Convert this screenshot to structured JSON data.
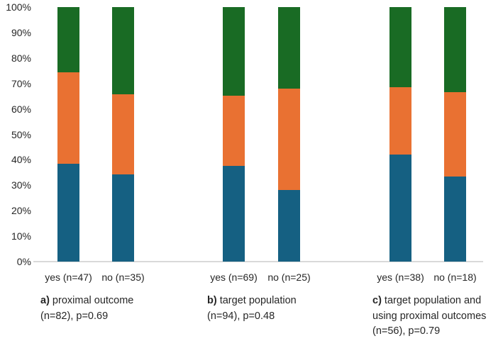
{
  "chart_data": {
    "type": "bar",
    "subtype": "stacked-100-percent",
    "title": "",
    "xlabel": "",
    "ylabel": "",
    "ylim": [
      0,
      100
    ],
    "grid": false,
    "legend": "none",
    "ytick_labels": [
      "0%",
      "10%",
      "20%",
      "30%",
      "40%",
      "50%",
      "60%",
      "70%",
      "80%",
      "90%",
      "100%"
    ],
    "series": [
      {
        "name": "bottom-segment",
        "color": "#156082"
      },
      {
        "name": "middle-segment",
        "color": "#E97132"
      },
      {
        "name": "top-segment",
        "color": "#196B24"
      }
    ],
    "groups": [
      {
        "caption": {
          "prefix": "a)",
          "lines": [
            "proximal outcome",
            "(n=82), p=0.69"
          ]
        },
        "bars": [
          {
            "label": "yes (n=47)",
            "values": [
              38.3,
              36.2,
              25.5
            ]
          },
          {
            "label": "no (n=35)",
            "values": [
              34.3,
              31.4,
              34.3
            ]
          }
        ]
      },
      {
        "caption": {
          "prefix": "b)",
          "lines": [
            "target population",
            "(n=94), p=0.48"
          ]
        },
        "bars": [
          {
            "label": "yes (n=69)",
            "values": [
              37.7,
              27.5,
              34.8
            ]
          },
          {
            "label": "no (n=25)",
            "values": [
              28.0,
              40.0,
              32.0
            ]
          }
        ]
      },
      {
        "caption": {
          "prefix": "c)",
          "lines": [
            "target population and",
            "using proximal outcomes",
            "(n=56), p=0.79"
          ]
        },
        "bars": [
          {
            "label": "yes (n=38)",
            "values": [
              42.1,
              26.3,
              31.6
            ]
          },
          {
            "label": "no (n=18)",
            "values": [
              33.3,
              33.3,
              33.3
            ]
          }
        ]
      }
    ],
    "colors": {
      "axis_line": "#d9d9d9",
      "text": "#262626"
    }
  }
}
